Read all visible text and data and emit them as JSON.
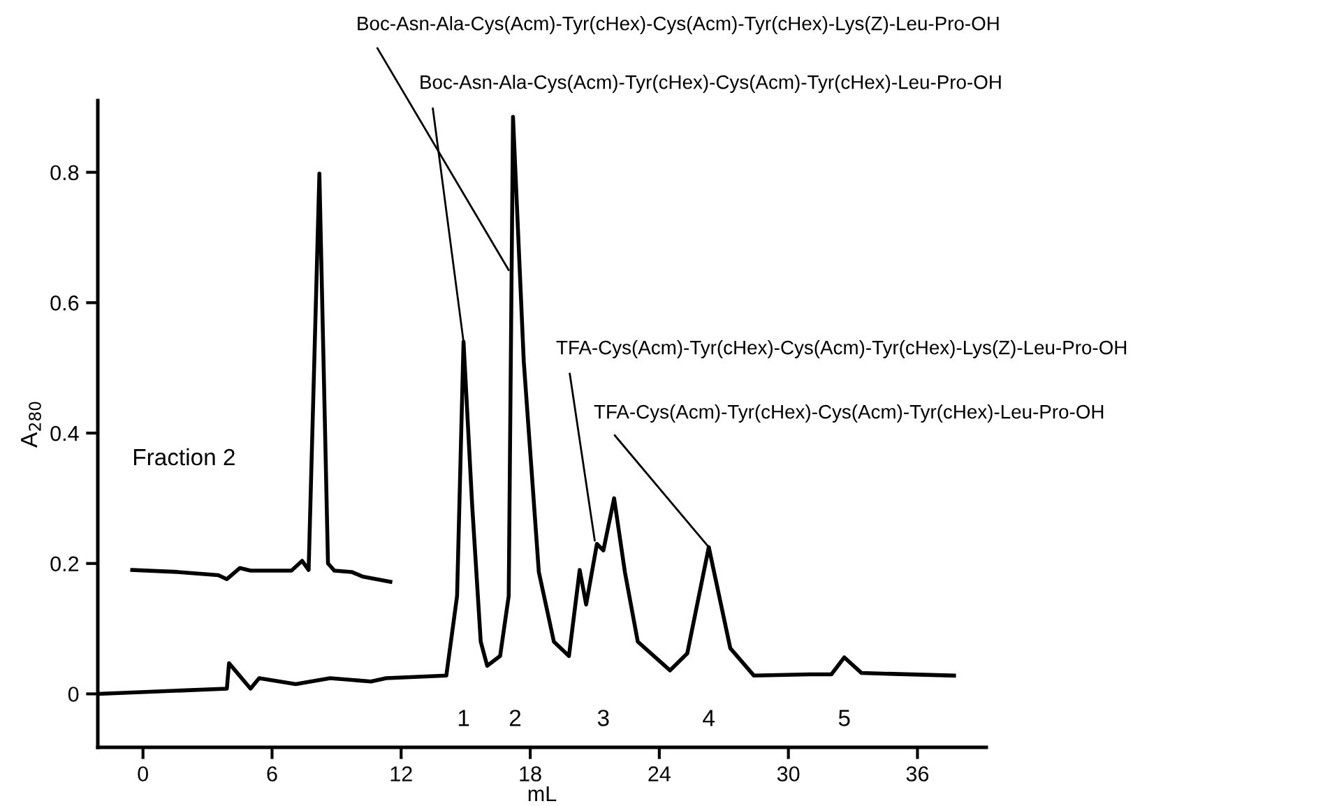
{
  "chart_data": {
    "type": "line",
    "xlabel": "mL",
    "ylabel": "A$_{280}$",
    "xlim": [
      -2.1,
      39.2
    ],
    "ylim": [
      -0.082,
      0.91
    ],
    "xticks": [
      0,
      6,
      12,
      18,
      24,
      30,
      36
    ],
    "yticks": [
      0,
      0.2,
      0.4,
      0.6,
      0.8
    ],
    "grid": false,
    "marker": "none",
    "line_style": "solid",
    "series": [
      {
        "color": "#000000",
        "x": [
          -2.1,
          3.9,
          4.0,
          5.0,
          5.4,
          7.1,
          8.7,
          10.6,
          11.3,
          14.1,
          14.6,
          14.9,
          15.3,
          15.7,
          16.0,
          16.6,
          17.0,
          17.2,
          17.7,
          18.4,
          19.1,
          19.8,
          20.3,
          20.6,
          21.1,
          21.4,
          21.9,
          22.4,
          23.0,
          24.5,
          25.3,
          26.3,
          27.3,
          28.4,
          31.0,
          32.0,
          32.6,
          33.4,
          37.7
        ],
        "values": [
          0,
          0.008,
          0.047,
          0.008,
          0.024,
          0.015,
          0.024,
          0.019,
          0.024,
          0.028,
          0.15,
          0.54,
          0.29,
          0.08,
          0.043,
          0.058,
          0.15,
          0.885,
          0.51,
          0.187,
          0.08,
          0.058,
          0.19,
          0.137,
          0.23,
          0.22,
          0.3,
          0.187,
          0.08,
          0.036,
          0.062,
          0.225,
          0.07,
          0.028,
          0.03,
          0.03,
          0.056,
          0.032,
          0.028
        ]
      },
      {
        "color": "#000000",
        "x": [
          -0.5,
          1.6,
          3.5,
          3.9,
          4.5,
          5.0,
          6.9,
          7.4,
          7.7,
          8.2,
          8.6,
          8.9,
          9.7,
          10.2,
          11.5
        ],
        "values": [
          0.19,
          0.187,
          0.182,
          0.176,
          0.193,
          0.189,
          0.189,
          0.204,
          0.19,
          0.798,
          0.2,
          0.189,
          0.187,
          0.18,
          0.172
        ]
      }
    ],
    "annotations": [
      {
        "text": "Boc-Asn-Ala-Cys(Acm)-Tyr(cHex)-Cys(Acm)-Tyr(cHex)-Lys(Z)-Leu-Pro-OH",
        "x": 17.0,
        "y": 0.65
      },
      {
        "text": "Boc-Asn-Ala-Cys(Acm)-Tyr(cHex)-Cys(Acm)-Tyr(cHex)-Leu-Pro-OH",
        "x": 14.9,
        "y": 0.54
      },
      {
        "text": "TFA-Cys(Acm)-Tyr(cHex)-Cys(Acm)-Tyr(cHex)-Lys(Z)-Leu-Pro-OH",
        "x": 21.0,
        "y": 0.235
      },
      {
        "text": "TFA-Cys(Acm)-Tyr(cHex)-Cys(Acm)-Tyr(cHex)-Leu-Pro-OH",
        "x": 26.3,
        "y": 0.225
      },
      "Fraction 2",
      "1",
      "2",
      "3",
      "4",
      "5"
    ]
  }
}
